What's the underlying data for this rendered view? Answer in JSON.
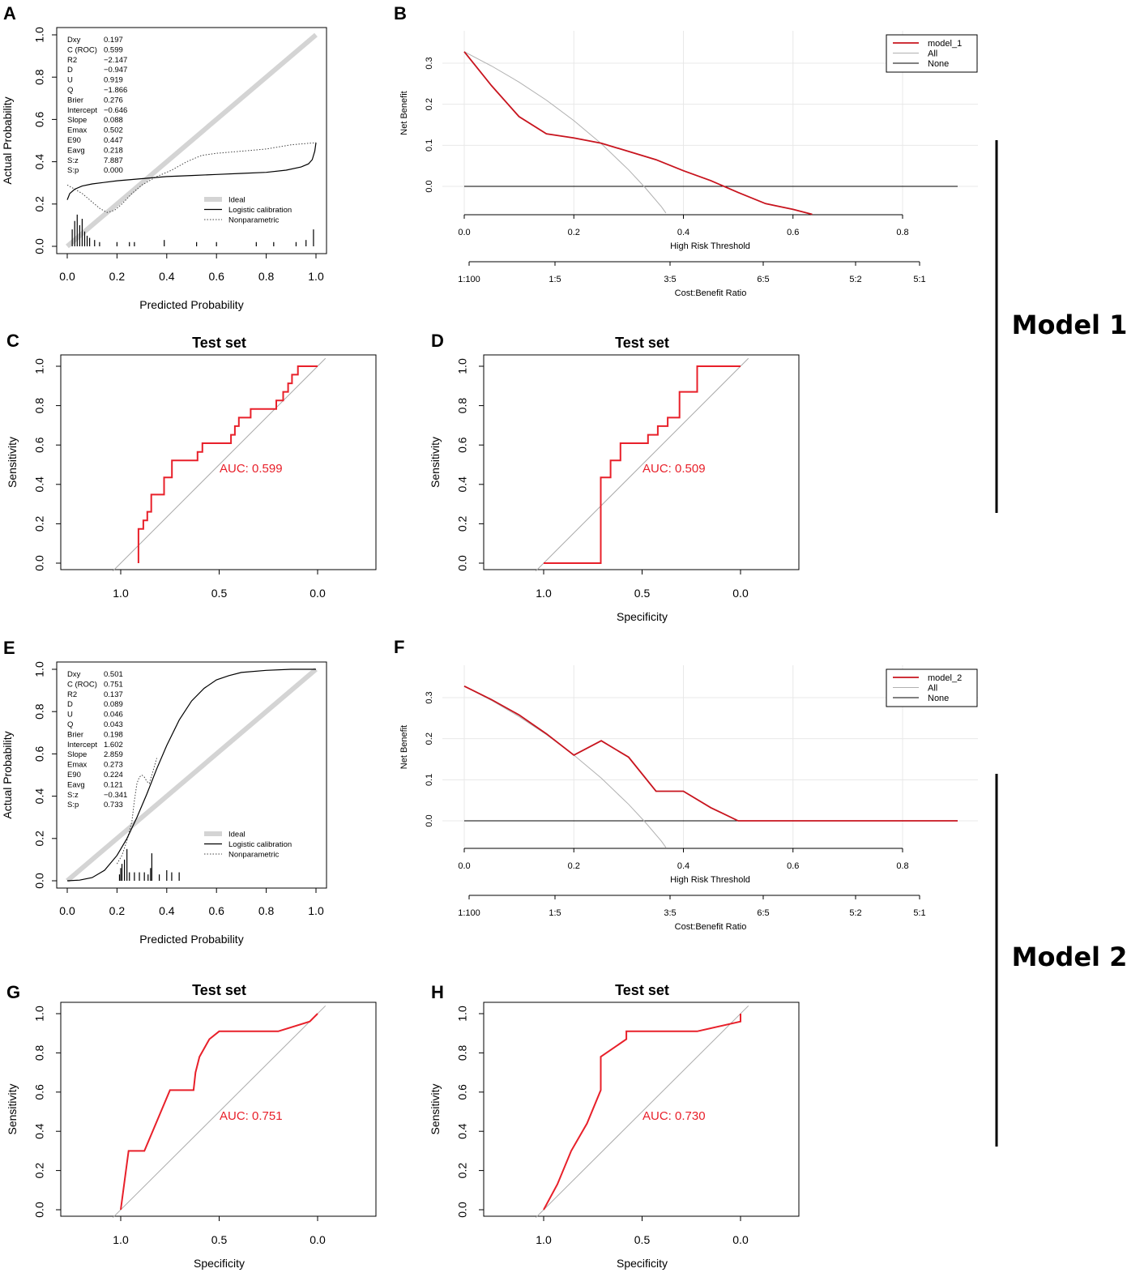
{
  "models": [
    {
      "label": "Model 1"
    },
    {
      "label": "Model 2"
    }
  ],
  "chart_data": [
    {
      "panel": "A",
      "type": "line",
      "chart": "calibration",
      "xlabel": "Predicted Probability",
      "ylabel": "Actual Probability",
      "xlim": [
        0,
        1
      ],
      "ylim": [
        0,
        1
      ],
      "xticks": [
        "0.0",
        "0.2",
        "0.4",
        "0.6",
        "0.8",
        "1.0"
      ],
      "yticks": [
        "0.0",
        "0.2",
        "0.4",
        "0.6",
        "0.8",
        "1.0"
      ],
      "stats": [
        {
          "name": "Dxy",
          "value": "0.197"
        },
        {
          "name": "C (ROC)",
          "value": "0.599"
        },
        {
          "name": "R2",
          "value": "−2.147"
        },
        {
          "name": "D",
          "value": "−0.947"
        },
        {
          "name": "U",
          "value": "0.919"
        },
        {
          "name": "Q",
          "value": "−1.866"
        },
        {
          "name": "Brier",
          "value": "0.276"
        },
        {
          "name": "Intercept",
          "value": "−0.646"
        },
        {
          "name": "Slope",
          "value": "0.088"
        },
        {
          "name": "Emax",
          "value": "0.502"
        },
        {
          "name": "E90",
          "value": "0.447"
        },
        {
          "name": "Eavg",
          "value": "0.218"
        },
        {
          "name": "S:z",
          "value": "7.887"
        },
        {
          "name": "S:p",
          "value": "0.000"
        }
      ],
      "legend": [
        "Ideal",
        "Logistic calibration",
        "Nonparametric"
      ],
      "series": [
        {
          "name": "Ideal",
          "x": [
            0,
            1
          ],
          "y": [
            0,
            1
          ]
        },
        {
          "name": "Logistic calibration",
          "x": [
            0,
            0.01,
            0.03,
            0.06,
            0.1,
            0.2,
            0.3,
            0.4,
            0.5,
            0.6,
            0.7,
            0.8,
            0.88,
            0.94,
            0.97,
            0.985,
            0.995,
            1.0
          ],
          "y": [
            0.22,
            0.25,
            0.27,
            0.285,
            0.295,
            0.31,
            0.32,
            0.33,
            0.335,
            0.34,
            0.345,
            0.35,
            0.36,
            0.375,
            0.39,
            0.41,
            0.45,
            0.49
          ]
        },
        {
          "name": "Nonparametric",
          "x": [
            0,
            0.03,
            0.06,
            0.1,
            0.13,
            0.16,
            0.19,
            0.22,
            0.26,
            0.3,
            0.36,
            0.42,
            0.48,
            0.54,
            0.6,
            0.7,
            0.8,
            0.9,
            1.0
          ],
          "y": [
            0.29,
            0.27,
            0.25,
            0.21,
            0.18,
            0.16,
            0.17,
            0.2,
            0.25,
            0.29,
            0.33,
            0.36,
            0.4,
            0.43,
            0.44,
            0.45,
            0.46,
            0.48,
            0.49
          ]
        }
      ],
      "rug": [
        {
          "x": 0.02,
          "h": 0.08
        },
        {
          "x": 0.03,
          "h": 0.12
        },
        {
          "x": 0.04,
          "h": 0.15
        },
        {
          "x": 0.05,
          "h": 0.1
        },
        {
          "x": 0.06,
          "h": 0.13
        },
        {
          "x": 0.07,
          "h": 0.07
        },
        {
          "x": 0.08,
          "h": 0.05
        },
        {
          "x": 0.09,
          "h": 0.04
        },
        {
          "x": 0.11,
          "h": 0.03
        },
        {
          "x": 0.13,
          "h": 0.02
        },
        {
          "x": 0.2,
          "h": 0.02
        },
        {
          "x": 0.25,
          "h": 0.02
        },
        {
          "x": 0.27,
          "h": 0.02
        },
        {
          "x": 0.39,
          "h": 0.03
        },
        {
          "x": 0.52,
          "h": 0.02
        },
        {
          "x": 0.6,
          "h": 0.02
        },
        {
          "x": 0.76,
          "h": 0.02
        },
        {
          "x": 0.83,
          "h": 0.02
        },
        {
          "x": 0.92,
          "h": 0.02
        },
        {
          "x": 0.96,
          "h": 0.03
        },
        {
          "x": 0.99,
          "h": 0.08
        }
      ]
    },
    {
      "panel": "B",
      "type": "line",
      "chart": "decision-curve",
      "xlabel": "High Risk Threshold",
      "ylabel": "Net Benefit",
      "x2label": "Cost:Benefit Ratio",
      "xlim": [
        0,
        0.8
      ],
      "ylim": [
        -0.07,
        0.33
      ],
      "xticks": [
        "0.0",
        "0.2",
        "0.4",
        "0.6",
        "0.8"
      ],
      "yticks": [
        "0.0",
        "0.1",
        "0.2",
        "0.3"
      ],
      "cbticks": [
        "1:100",
        "1:5",
        "3:5",
        "6:5",
        "5:2",
        "5:1"
      ],
      "legend": [
        "model_1",
        "All",
        "None"
      ],
      "series": [
        {
          "name": "model_1",
          "x": [
            0,
            0.05,
            0.1,
            0.15,
            0.2,
            0.25,
            0.3,
            0.35,
            0.4,
            0.45,
            0.5,
            0.55,
            0.6,
            0.635
          ],
          "y": [
            0.328,
            0.245,
            0.17,
            0.128,
            0.118,
            0.105,
            0.085,
            0.065,
            0.038,
            0.014,
            -0.015,
            -0.042,
            -0.056,
            -0.068
          ]
        },
        {
          "name": "All",
          "x": [
            0,
            0.05,
            0.1,
            0.15,
            0.2,
            0.25,
            0.3,
            0.33,
            0.36,
            0.368
          ],
          "y": [
            0.328,
            0.293,
            0.254,
            0.21,
            0.16,
            0.104,
            0.04,
            -0.003,
            -0.05,
            -0.065
          ]
        },
        {
          "name": "None",
          "x": [
            0,
            0.9
          ],
          "y": [
            0,
            0
          ]
        }
      ]
    },
    {
      "panel": "C",
      "type": "line",
      "chart": "roc",
      "title": "Test set",
      "xlabel": "",
      "ylabel": "Sensitivity",
      "auc": "AUC: 0.599",
      "xticks": [
        "1.0",
        "0.5",
        "0.0"
      ],
      "yticks": [
        "0.0",
        "0.2",
        "0.4",
        "0.6",
        "0.8",
        "1.0"
      ],
      "series": [
        {
          "name": "ROC",
          "specificity": [
            0.91,
            0.91,
            0.91,
            0.885,
            0.885,
            0.865,
            0.865,
            0.845,
            0.845,
            0.78,
            0.78,
            0.74,
            0.74,
            0.61,
            0.61,
            0.585,
            0.585,
            0.44,
            0.44,
            0.42,
            0.42,
            0.4,
            0.4,
            0.34,
            0.34,
            0.21,
            0.21,
            0.175,
            0.175,
            0.15,
            0.15,
            0.13,
            0.13,
            0.1,
            0.1,
            0.0
          ],
          "sensitivity": [
            0.0,
            0.0,
            0.174,
            0.174,
            0.217,
            0.217,
            0.261,
            0.261,
            0.348,
            0.348,
            0.435,
            0.435,
            0.522,
            0.522,
            0.565,
            0.565,
            0.609,
            0.609,
            0.652,
            0.652,
            0.696,
            0.696,
            0.739,
            0.739,
            0.783,
            0.783,
            0.826,
            0.826,
            0.87,
            0.87,
            0.913,
            0.913,
            0.957,
            0.957,
            1.0,
            1.0
          ]
        }
      ]
    },
    {
      "panel": "D",
      "type": "line",
      "chart": "roc",
      "title": "Test set",
      "xlabel": "Specificity",
      "ylabel": "Sensitivity",
      "auc": "AUC: 0.509",
      "xticks": [
        "1.0",
        "0.5",
        "0.0"
      ],
      "yticks": [
        "0.0",
        "0.2",
        "0.4",
        "0.6",
        "0.8",
        "1.0"
      ],
      "series": [
        {
          "name": "ROC",
          "specificity": [
            1.0,
            0.71,
            0.71,
            0.66,
            0.66,
            0.61,
            0.61,
            0.47,
            0.47,
            0.42,
            0.42,
            0.37,
            0.37,
            0.31,
            0.31,
            0.22,
            0.22,
            0.14,
            0.14,
            0.0
          ],
          "sensitivity": [
            0.0,
            0.0,
            0.435,
            0.435,
            0.522,
            0.522,
            0.609,
            0.609,
            0.652,
            0.652,
            0.696,
            0.696,
            0.739,
            0.739,
            0.87,
            0.87,
            1.0,
            1.0,
            1.0,
            1.0
          ]
        }
      ]
    },
    {
      "panel": "E",
      "type": "line",
      "chart": "calibration",
      "xlabel": "Predicted Probability",
      "ylabel": "Actual Probability",
      "xlim": [
        0,
        1
      ],
      "ylim": [
        0,
        1
      ],
      "xticks": [
        "0.0",
        "0.2",
        "0.4",
        "0.6",
        "0.8",
        "1.0"
      ],
      "yticks": [
        "0.0",
        "0.2",
        "0.4",
        "0.6",
        "0.8",
        "1.0"
      ],
      "stats": [
        {
          "name": "Dxy",
          "value": "0.501"
        },
        {
          "name": "C (ROC)",
          "value": "0.751"
        },
        {
          "name": "R2",
          "value": "0.137"
        },
        {
          "name": "D",
          "value": "0.089"
        },
        {
          "name": "U",
          "value": "0.046"
        },
        {
          "name": "Q",
          "value": "0.043"
        },
        {
          "name": "Brier",
          "value": "0.198"
        },
        {
          "name": "Intercept",
          "value": "1.602"
        },
        {
          "name": "Slope",
          "value": "2.859"
        },
        {
          "name": "Emax",
          "value": "0.273"
        },
        {
          "name": "E90",
          "value": "0.224"
        },
        {
          "name": "Eavg",
          "value": "0.121"
        },
        {
          "name": "S:z",
          "value": "−0.341"
        },
        {
          "name": "S:p",
          "value": "0.733"
        }
      ],
      "legend": [
        "Ideal",
        "Logistic calibration",
        "Nonparametric"
      ],
      "series": [
        {
          "name": "Ideal",
          "x": [
            0,
            1
          ],
          "y": [
            0,
            1
          ]
        },
        {
          "name": "Logistic calibration",
          "x": [
            0,
            0.05,
            0.1,
            0.15,
            0.2,
            0.24,
            0.28,
            0.32,
            0.36,
            0.4,
            0.45,
            0.5,
            0.55,
            0.6,
            0.65,
            0.7,
            0.8,
            0.9,
            1.0
          ],
          "y": [
            0.0,
            0.003,
            0.015,
            0.05,
            0.12,
            0.2,
            0.3,
            0.41,
            0.53,
            0.64,
            0.76,
            0.85,
            0.91,
            0.95,
            0.97,
            0.985,
            0.995,
            1.0,
            1.0
          ]
        },
        {
          "name": "Nonparametric",
          "x": [
            0.2,
            0.22,
            0.24,
            0.26,
            0.27,
            0.28,
            0.29,
            0.3,
            0.31,
            0.32,
            0.33,
            0.34,
            0.36
          ],
          "y": [
            0.08,
            0.12,
            0.19,
            0.28,
            0.38,
            0.46,
            0.49,
            0.5,
            0.49,
            0.47,
            0.46,
            0.5,
            0.58
          ]
        }
      ],
      "rug": [
        {
          "x": 0.21,
          "h": 0.03
        },
        {
          "x": 0.215,
          "h": 0.06
        },
        {
          "x": 0.22,
          "h": 0.08
        },
        {
          "x": 0.23,
          "h": 0.1
        },
        {
          "x": 0.24,
          "h": 0.15
        },
        {
          "x": 0.25,
          "h": 0.04
        },
        {
          "x": 0.27,
          "h": 0.04
        },
        {
          "x": 0.29,
          "h": 0.04
        },
        {
          "x": 0.31,
          "h": 0.04
        },
        {
          "x": 0.325,
          "h": 0.03
        },
        {
          "x": 0.335,
          "h": 0.06
        },
        {
          "x": 0.34,
          "h": 0.13
        },
        {
          "x": 0.37,
          "h": 0.03
        },
        {
          "x": 0.4,
          "h": 0.05
        },
        {
          "x": 0.42,
          "h": 0.04
        },
        {
          "x": 0.45,
          "h": 0.04
        }
      ]
    },
    {
      "panel": "F",
      "type": "line",
      "chart": "decision-curve",
      "xlabel": "High Risk Threshold",
      "ylabel": "Net Benefit",
      "x2label": "Cost:Benefit Ratio",
      "xlim": [
        0,
        0.8
      ],
      "ylim": [
        -0.07,
        0.33
      ],
      "xticks": [
        "0.0",
        "0.2",
        "0.4",
        "0.6",
        "0.8"
      ],
      "yticks": [
        "0.0",
        "0.1",
        "0.2",
        "0.3"
      ],
      "cbticks": [
        "1:100",
        "1:5",
        "3:5",
        "6:5",
        "5:2",
        "5:1"
      ],
      "legend": [
        "model_2",
        "All",
        "None"
      ],
      "series": [
        {
          "name": "model_2",
          "x": [
            0,
            0.05,
            0.1,
            0.15,
            0.2,
            0.25,
            0.3,
            0.35,
            0.4,
            0.45,
            0.5,
            0.6,
            0.7,
            0.8,
            0.9
          ],
          "y": [
            0.328,
            0.295,
            0.258,
            0.212,
            0.16,
            0.195,
            0.155,
            0.072,
            0.072,
            0.032,
            0.0,
            0.0,
            0.0,
            0.0,
            0.0
          ]
        },
        {
          "name": "All",
          "x": [
            0,
            0.05,
            0.1,
            0.15,
            0.2,
            0.25,
            0.3,
            0.33,
            0.36,
            0.368
          ],
          "y": [
            0.328,
            0.293,
            0.254,
            0.21,
            0.16,
            0.104,
            0.04,
            -0.003,
            -0.05,
            -0.065
          ]
        },
        {
          "name": "None",
          "x": [
            0,
            0.9
          ],
          "y": [
            0,
            0
          ]
        }
      ]
    },
    {
      "panel": "G",
      "type": "line",
      "chart": "roc",
      "title": "Test set",
      "xlabel": "Specificity",
      "ylabel": "Sensitivity",
      "auc": "AUC: 0.751",
      "xticks": [
        "1.0",
        "0.5",
        "0.0"
      ],
      "yticks": [
        "0.0",
        "0.2",
        "0.4",
        "0.6",
        "0.8",
        "1.0"
      ],
      "series": [
        {
          "name": "ROC",
          "specificity": [
            1.0,
            0.96,
            0.92,
            0.88,
            0.75,
            0.63,
            0.62,
            0.6,
            0.55,
            0.5,
            0.2,
            0.04,
            0.0
          ],
          "sensitivity": [
            0.0,
            0.3,
            0.3,
            0.3,
            0.61,
            0.61,
            0.7,
            0.78,
            0.87,
            0.91,
            0.91,
            0.96,
            1.0
          ]
        }
      ]
    },
    {
      "panel": "H",
      "type": "line",
      "chart": "roc",
      "title": "Test set",
      "xlabel": "Specificity",
      "ylabel": "Sensitivity",
      "auc": "AUC: 0.730",
      "xticks": [
        "1.0",
        "0.5",
        "0.0"
      ],
      "yticks": [
        "0.0",
        "0.2",
        "0.4",
        "0.6",
        "0.8",
        "1.0"
      ],
      "series": [
        {
          "name": "ROC",
          "specificity": [
            1.0,
            0.93,
            0.86,
            0.78,
            0.71,
            0.71,
            0.58,
            0.58,
            0.22,
            0.0,
            0.0
          ],
          "sensitivity": [
            0.0,
            0.13,
            0.3,
            0.44,
            0.61,
            0.78,
            0.87,
            0.91,
            0.91,
            0.96,
            1.0
          ]
        }
      ]
    }
  ]
}
